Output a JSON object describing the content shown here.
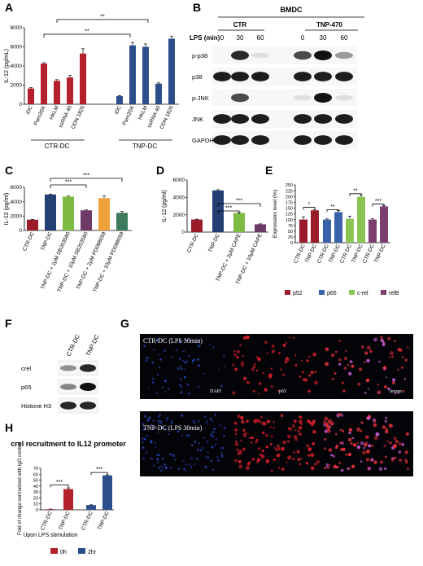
{
  "colors": {
    "ctr_red": "#b5202d",
    "tnp_blue": "#2c4f8c",
    "dark_red": "#9a1c2a",
    "dark_blue": "#233f73",
    "green": "#7dbb42",
    "orange": "#f0a23a",
    "purple": "#6e3b68",
    "sea_green": "#3d7a5e",
    "mid_blue": "#3a62a8",
    "light_green": "#8cc453",
    "panel_purple": "#7c3d6f"
  },
  "panels": {
    "A": "A",
    "B": "B",
    "C": "C",
    "D": "D",
    "E": "E",
    "F": "F",
    "G": "G",
    "H": "H"
  },
  "chart_data": [
    {
      "panel": "A",
      "type": "bar",
      "ylabel": "IL-12 (pg/mL)",
      "ylim": [
        0,
        8000
      ],
      "yticks": [
        "0",
        "2000",
        "4000",
        "6000",
        "8000"
      ],
      "categories": [
        "iDC",
        "Pam3SK",
        "HKLM",
        "ssRNA 40",
        "ODN 1826",
        "iDC",
        "Pam3SK",
        "HKLM",
        "ssRNA 40",
        "ODN 1826"
      ],
      "groups": [
        "CTR-DC",
        "TNP-DC"
      ],
      "values": [
        1650,
        4250,
        2450,
        2800,
        5300,
        850,
        6150,
        6000,
        2150,
        6850
      ],
      "errors": [
        80,
        100,
        120,
        220,
        500,
        50,
        300,
        300,
        80,
        250
      ],
      "significance": [
        "**",
        "**"
      ]
    },
    {
      "panel": "C",
      "type": "bar",
      "ylabel": "IL-12 (pg/ml)",
      "ylim": [
        0,
        6000
      ],
      "yticks": [
        "0",
        "2000",
        "4000",
        "6000"
      ],
      "categories": [
        "CTR-DC",
        "TNP-DC",
        "TNP-DC + 2μM SB203580",
        "TNP-DC + 10μM SB203580",
        "TNP-DC + 2μM PD098059",
        "TNP-DC + 10μM PD098059"
      ],
      "values": [
        1500,
        5000,
        4700,
        2800,
        4500,
        2450
      ],
      "errors": [
        40,
        60,
        80,
        60,
        300,
        200
      ],
      "significance": [
        "***",
        "***"
      ]
    },
    {
      "panel": "D",
      "type": "bar",
      "ylabel": "IL-12 (pg/ml)",
      "ylim": [
        0,
        6000
      ],
      "yticks": [
        "0",
        "2000",
        "4000",
        "6000"
      ],
      "categories": [
        "CTR-DC",
        "TNP-DC",
        "TNP-DC + 2μM CAPE",
        "TNP-DC + 10μM CAPE"
      ],
      "values": [
        1450,
        4800,
        2200,
        900
      ],
      "errors": [
        40,
        80,
        60,
        50
      ],
      "significance": [
        "***",
        "***"
      ]
    },
    {
      "panel": "E",
      "type": "bar",
      "ylabel": "Expression level (%)",
      "ylim": [
        0,
        250
      ],
      "yticks": [
        "0",
        "25",
        "50",
        "75",
        "100",
        "125",
        "150",
        "175",
        "200",
        "225",
        "250"
      ],
      "categories": [
        "CTR-DC",
        "TNP-DC",
        "CTR-DC",
        "TNP-DC",
        "CTR-DC",
        "TNP-DC",
        "CTR-DC",
        "TNP-DC"
      ],
      "series_names": [
        "p52",
        "p65",
        "c-rel",
        "relB"
      ],
      "values": [
        100,
        140,
        100,
        132,
        103,
        198,
        100,
        157
      ],
      "errors": [
        12,
        3,
        3,
        7,
        12,
        8,
        3,
        3
      ],
      "significance": [
        "*",
        "**",
        "**",
        "***"
      ]
    },
    {
      "panel": "H",
      "type": "bar",
      "title": "crel recruitment to IL12 promoter",
      "ylabel": "Fold of change normalized with IgG control",
      "xlabel": "Upon LPS stimulation",
      "ylim": [
        0,
        70
      ],
      "yticks": [
        "0",
        "10",
        "20",
        "30",
        "40",
        "50",
        "60",
        "70"
      ],
      "categories": [
        "CTR-DC",
        "TNP-DC"
      ],
      "series": [
        {
          "name": "0h",
          "values": [
            1,
            35
          ],
          "errors": [
            0.3,
            2
          ]
        },
        {
          "name": "2hr",
          "values": [
            8,
            58
          ],
          "errors": [
            0.5,
            1
          ]
        }
      ],
      "significance": [
        "***",
        "***"
      ]
    }
  ],
  "blot_b": {
    "title": "BMDC",
    "groups": [
      "CTR",
      "TNP-470"
    ],
    "lps_label": "LPS (min)",
    "times": [
      "0",
      "30",
      "60",
      "0",
      "30",
      "60"
    ],
    "rows": [
      {
        "label": "p-p38",
        "levels": [
          0.05,
          0.9,
          0.1,
          0.75,
          1.0,
          0.4
        ]
      },
      {
        "label": "p38",
        "levels": [
          0.95,
          0.95,
          0.95,
          0.95,
          0.95,
          0.95
        ]
      },
      {
        "label": "p-JNK",
        "levels": [
          0.05,
          0.75,
          0.05,
          0.1,
          1.0,
          0.1
        ]
      },
      {
        "label": "JNK",
        "levels": [
          0.95,
          0.95,
          0.95,
          0.95,
          0.95,
          0.95
        ]
      },
      {
        "label": "GAPDH",
        "levels": [
          0.95,
          0.95,
          0.95,
          0.95,
          0.95,
          0.95
        ]
      }
    ]
  },
  "blot_f": {
    "columns": [
      "CTR-DC",
      "TNP-DC"
    ],
    "rows": [
      {
        "label": "crel",
        "levels": [
          0.45,
          0.9
        ]
      },
      {
        "label": "p65",
        "levels": [
          0.5,
          1.0
        ]
      },
      {
        "label": "Histone H3",
        "levels": [
          0.9,
          0.9
        ]
      }
    ]
  },
  "micro_g": {
    "rows": [
      {
        "title": "CTR-DC (LPS 30min)",
        "density": 0.45
      },
      {
        "title": "TNP-DC (LPS 30min)",
        "density": 1.0
      }
    ],
    "channels": [
      "DAPI",
      "p65",
      "merge"
    ]
  }
}
